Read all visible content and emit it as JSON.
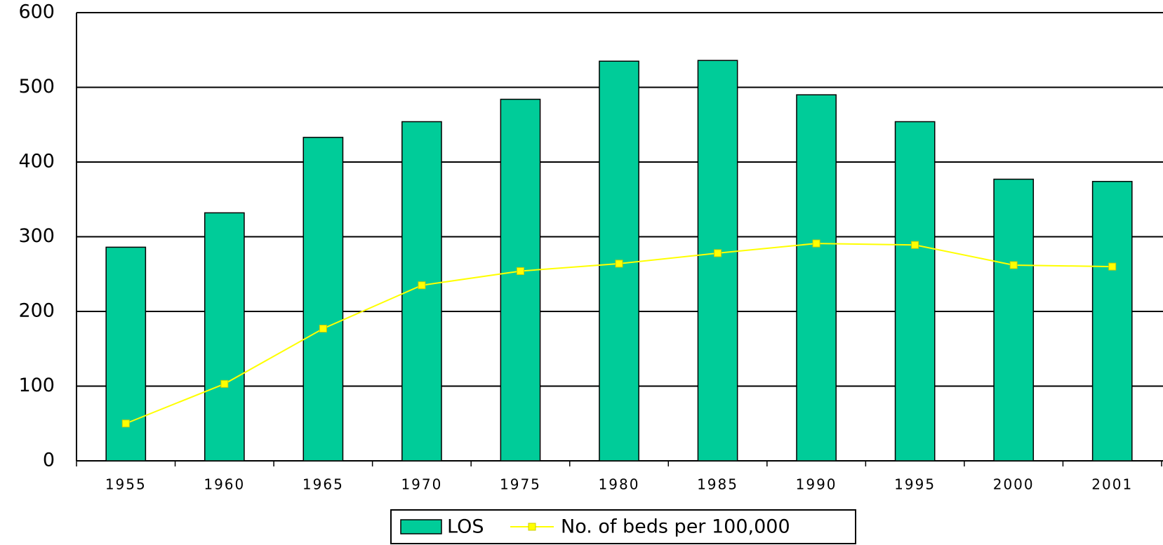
{
  "chart_data": {
    "type": "bar",
    "categories": [
      "1955",
      "1960",
      "1965",
      "1970",
      "1975",
      "1980",
      "1985",
      "1990",
      "1995",
      "2000",
      "2001"
    ],
    "series": [
      {
        "name": "LOS",
        "type": "bar",
        "color": "#00cc99",
        "values": [
          286,
          332,
          433,
          454,
          484,
          535,
          536,
          490,
          454,
          377,
          374
        ]
      },
      {
        "name": "No. of beds per 100,000",
        "type": "line",
        "color": "#ffff00",
        "values": [
          50,
          103,
          177,
          235,
          254,
          264,
          278,
          291,
          289,
          262,
          260
        ]
      }
    ],
    "ylim": [
      0,
      600
    ],
    "yticks": [
      0,
      100,
      200,
      300,
      400,
      500,
      600
    ],
    "grid": true,
    "legend": "bottom"
  }
}
